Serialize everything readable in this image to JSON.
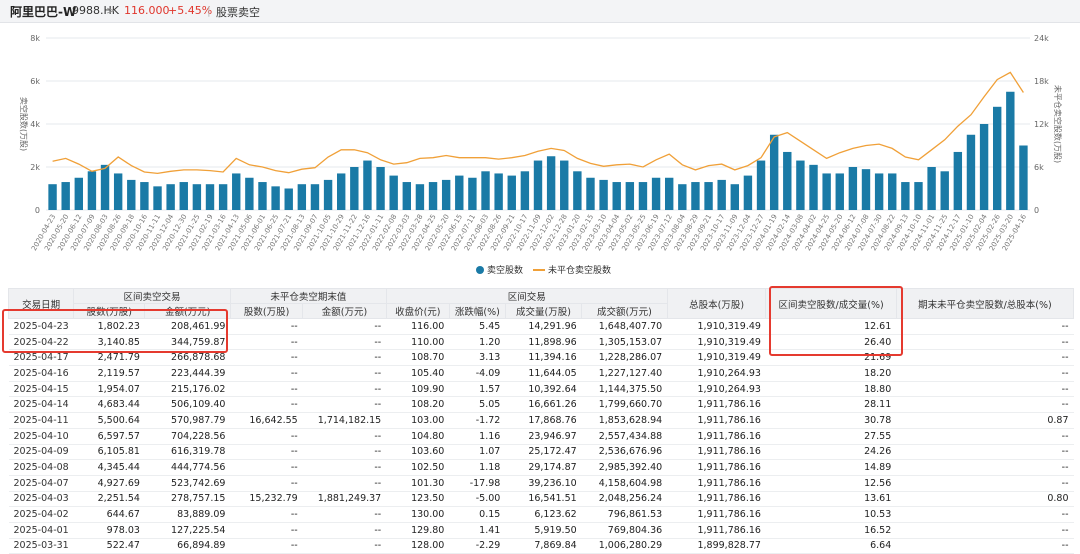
{
  "header": {
    "stock_name": "阿里巴巴-W",
    "stock_code": "9988.HK",
    "separator": ">",
    "price": "116.000",
    "change_pct": "+5.45%",
    "tab": "股票卖空",
    "down_color": "#e0352b"
  },
  "chart_data": {
    "type": "bar",
    "ylabel_left": "卖空股数(万股)",
    "ylabel_right": "未平仓卖空股数(万股)",
    "y_left_ticks": [
      "8k",
      "6k",
      "4k",
      "2k",
      "0"
    ],
    "y_left_range": [
      0,
      8000
    ],
    "y_right_ticks": [
      "24k",
      "18k",
      "12k",
      "6k",
      "0"
    ],
    "y_right_range": [
      0,
      24000
    ],
    "x_tick_labels": [
      "2020-04-23",
      "2020-05-20",
      "2020-06-12",
      "2020-07-09",
      "2020-08-03",
      "2020-08-26",
      "2020-09-18",
      "2020-10-16",
      "2020-11-11",
      "2020-12-04",
      "2020-12-30",
      "2021-01-25",
      "2021-02-19",
      "2021-03-16",
      "2021-04-13",
      "2021-05-06",
      "2021-06-01",
      "2021-06-25",
      "2021-07-21",
      "2021-08-13",
      "2021-09-07",
      "2021-10-05",
      "2021-10-29",
      "2021-11-22",
      "2021-12-16",
      "2022-01-11",
      "2022-02-08",
      "2022-03-03",
      "2022-03-28",
      "2022-04-25",
      "2022-05-20",
      "2022-06-15",
      "2022-07-11",
      "2022-08-03",
      "2022-08-26",
      "2022-09-21",
      "2022-10-17",
      "2022-11-09",
      "2022-12-02",
      "2022-12-28",
      "2023-01-20",
      "2023-02-15",
      "2023-03-10",
      "2023-04-04",
      "2023-05-02",
      "2023-05-25",
      "2023-06-19",
      "2023-07-12",
      "2023-08-04",
      "2023-08-29",
      "2023-09-21",
      "2023-10-17",
      "2023-11-09",
      "2023-12-04",
      "2023-12-27",
      "2024-01-19",
      "2024-02-14",
      "2024-03-08",
      "2024-04-02",
      "2024-04-25",
      "2024-05-20",
      "2024-06-12",
      "2024-07-08",
      "2024-07-30",
      "2024-08-22",
      "2024-09-13",
      "2024-10-10",
      "2024-11-01",
      "2024-11-25",
      "2024-12-17",
      "2025-01-10",
      "2025-02-04",
      "2025-02-26",
      "2025-03-20",
      "2025-04-16"
    ],
    "legend": [
      {
        "name": "卖空股数",
        "color": "#1a7aa6",
        "kind": "bar"
      },
      {
        "name": "未平仓卖空股数",
        "color": "#f0a038",
        "kind": "line"
      }
    ],
    "bars_left_axis": [
      1200,
      1300,
      1500,
      1800,
      2100,
      1700,
      1400,
      1300,
      1100,
      1200,
      1300,
      1200,
      1200,
      1200,
      1700,
      1500,
      1300,
      1100,
      1000,
      1200,
      1200,
      1400,
      1700,
      2000,
      2300,
      2000,
      1600,
      1300,
      1200,
      1300,
      1400,
      1600,
      1500,
      1800,
      1700,
      1600,
      1800,
      2300,
      2500,
      2300,
      1800,
      1500,
      1400,
      1300,
      1300,
      1300,
      1500,
      1500,
      1200,
      1300,
      1300,
      1400,
      1200,
      1600,
      2300,
      3500,
      2700,
      2300,
      2100,
      1700,
      1700,
      2000,
      1900,
      1700,
      1700,
      1300,
      1300,
      2000,
      1800,
      2700,
      3500,
      4000,
      4800,
      5500,
      3000
    ],
    "line_right_axis": [
      6800,
      7200,
      6400,
      5400,
      5800,
      7400,
      6200,
      5300,
      5100,
      5400,
      5600,
      5600,
      5500,
      5300,
      7200,
      6300,
      6000,
      5500,
      5200,
      5700,
      5900,
      7400,
      8400,
      8400,
      8000,
      7000,
      6400,
      6600,
      7200,
      7300,
      7600,
      7300,
      7300,
      7300,
      7100,
      7300,
      7600,
      8200,
      8600,
      8300,
      7200,
      6500,
      6100,
      6300,
      6400,
      6000,
      7000,
      7800,
      6300,
      5600,
      6200,
      6400,
      5600,
      6200,
      7300,
      10200,
      10800,
      9600,
      8400,
      7200,
      8000,
      8600,
      9000,
      9200,
      8600,
      7400,
      7000,
      8400,
      9800,
      11700,
      13300,
      15800,
      18200,
      19200,
      16400
    ]
  },
  "table": {
    "group_headers": [
      "交易日期",
      "区间卖空交易",
      "未平仓卖空期末值",
      "区间交易",
      "总股本(万股)",
      "区间卖空股数/成交量(%)",
      "期末未平仓卖空股数/总股本(%)"
    ],
    "sub_headers": [
      "股数(万股)",
      "金额(万元)",
      "股数(万股)",
      "金额(万元)",
      "收盘价(元)",
      "涨跌幅(%)",
      "成交量(万股)",
      "成交额(万元)"
    ],
    "rows": [
      [
        "2025-04-23",
        "1,802.23",
        "208,461.99",
        "--",
        "--",
        "116.00",
        "5.45",
        "14,291.96",
        "1,648,407.70",
        "1,910,319.49",
        "12.61",
        "--"
      ],
      [
        "2025-04-22",
        "3,140.85",
        "344,759.87",
        "--",
        "--",
        "110.00",
        "1.20",
        "11,898.96",
        "1,305,153.07",
        "1,910,319.49",
        "26.40",
        "--"
      ],
      [
        "2025-04-17",
        "2,471.79",
        "266,878.68",
        "--",
        "--",
        "108.70",
        "3.13",
        "11,394.16",
        "1,228,286.07",
        "1,910,319.49",
        "21.69",
        "--"
      ],
      [
        "2025-04-16",
        "2,119.57",
        "223,444.39",
        "--",
        "--",
        "105.40",
        "-4.09",
        "11,644.05",
        "1,227,127.40",
        "1,910,264.93",
        "18.20",
        "--"
      ],
      [
        "2025-04-15",
        "1,954.07",
        "215,176.02",
        "--",
        "--",
        "109.90",
        "1.57",
        "10,392.64",
        "1,144,375.50",
        "1,910,264.93",
        "18.80",
        "--"
      ],
      [
        "2025-04-14",
        "4,683.44",
        "506,109.40",
        "--",
        "--",
        "108.20",
        "5.05",
        "16,661.26",
        "1,799,660.70",
        "1,911,786.16",
        "28.11",
        "--"
      ],
      [
        "2025-04-11",
        "5,500.64",
        "570,987.79",
        "16,642.55",
        "1,714,182.15",
        "103.00",
        "-1.72",
        "17,868.76",
        "1,853,628.94",
        "1,911,786.16",
        "30.78",
        "0.87"
      ],
      [
        "2025-04-10",
        "6,597.57",
        "704,228.56",
        "--",
        "--",
        "104.80",
        "1.16",
        "23,946.97",
        "2,557,434.88",
        "1,911,786.16",
        "27.55",
        "--"
      ],
      [
        "2025-04-09",
        "6,105.81",
        "616,319.78",
        "--",
        "--",
        "103.60",
        "1.07",
        "25,172.47",
        "2,536,676.96",
        "1,911,786.16",
        "24.26",
        "--"
      ],
      [
        "2025-04-08",
        "4,345.44",
        "444,774.56",
        "--",
        "--",
        "102.50",
        "1.18",
        "29,174.87",
        "2,985,392.40",
        "1,911,786.16",
        "14.89",
        "--"
      ],
      [
        "2025-04-07",
        "4,927.69",
        "523,742.69",
        "--",
        "--",
        "101.30",
        "-17.98",
        "39,236.10",
        "4,158,604.98",
        "1,911,786.16",
        "12.56",
        "--"
      ],
      [
        "2025-04-03",
        "2,251.54",
        "278,757.15",
        "15,232.79",
        "1,881,249.37",
        "123.50",
        "-5.00",
        "16,541.51",
        "2,048,256.24",
        "1,911,786.16",
        "13.61",
        "0.80"
      ],
      [
        "2025-04-02",
        "644.67",
        "83,889.09",
        "--",
        "--",
        "130.00",
        "0.15",
        "6,123.62",
        "796,861.53",
        "1,911,786.16",
        "10.53",
        "--"
      ],
      [
        "2025-04-01",
        "978.03",
        "127,225.54",
        "--",
        "--",
        "129.80",
        "1.41",
        "5,919.50",
        "769,804.36",
        "1,911,786.16",
        "16.52",
        "--"
      ],
      [
        "2025-03-31",
        "522.47",
        "66,894.89",
        "--",
        "--",
        "128.00",
        "-2.29",
        "7,869.84",
        "1,006,280.29",
        "1,899,828.77",
        "6.64",
        "--"
      ]
    ]
  }
}
